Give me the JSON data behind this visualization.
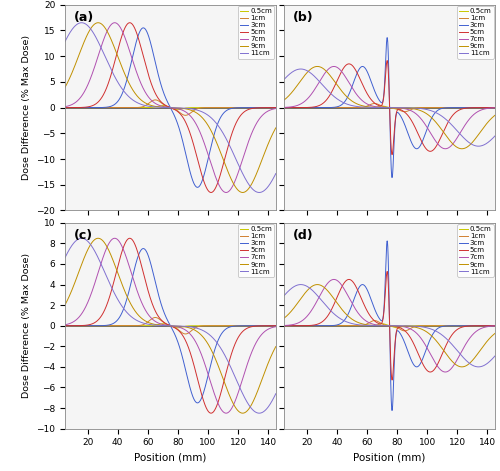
{
  "labels": [
    "0.5cm",
    "1cm",
    "3cm",
    "5cm",
    "7cm",
    "9cm",
    "11cm"
  ],
  "colors_a": [
    "#c8c800",
    "#d08030",
    "#4060d0",
    "#d03030",
    "#b050b0",
    "#c09000",
    "#8070d0"
  ],
  "colors_b": [
    "#c8c800",
    "#d08030",
    "#4060d0",
    "#d03030",
    "#b050b0",
    "#c09000",
    "#8070d0"
  ],
  "depths_cm": [
    0.5,
    1,
    3,
    5,
    7,
    9,
    11
  ],
  "x_min": 5,
  "x_max": 145,
  "x_ticks": [
    20,
    40,
    60,
    80,
    100,
    120,
    140
  ],
  "panel_labels": [
    "(a)",
    "(b)",
    "(c)",
    "(d)"
  ],
  "ylim_ab": [
    -20,
    20
  ],
  "ylim_cd": [
    -10,
    10
  ],
  "yticks_ab": [
    -20,
    -15,
    -10,
    -5,
    0,
    5,
    10,
    15,
    20
  ],
  "yticks_cd": [
    -10,
    -8,
    -6,
    -4,
    -2,
    0,
    2,
    4,
    6,
    8,
    10
  ],
  "ylabel": "Dose Difference (% Max Dose)",
  "xlabel": "Position (mm)",
  "interface_x": 75.0,
  "panel_a": {
    "amplitudes": [
      0.4,
      1.5,
      15.5,
      16.5,
      16.5,
      16.5,
      16.5
    ],
    "sigmas": [
      3.0,
      4.0,
      7.5,
      9.0,
      11.0,
      13.0,
      15.5
    ],
    "centers": [
      70.0,
      65.0,
      57.0,
      48.0,
      38.0,
      27.0,
      16.0
    ]
  },
  "panel_b": {
    "amplitudes": [
      0.3,
      0.8,
      8.0,
      8.5,
      8.0,
      8.0,
      7.5
    ],
    "sigmas": [
      2.5,
      3.5,
      6.0,
      8.0,
      10.0,
      12.0,
      14.0
    ],
    "centers": [
      70.0,
      65.0,
      57.0,
      48.0,
      38.0,
      27.0,
      16.0
    ],
    "spike_amps": [
      0.0,
      0.0,
      14.0,
      13.0,
      0.0,
      0.0,
      0.0
    ],
    "spike_sigmas": [
      0.0,
      0.0,
      1.2,
      1.5,
      0.0,
      0.0,
      0.0
    ],
    "spike_offsets": [
      0.0,
      0.0,
      -1.5,
      -1.0,
      0.0,
      0.0,
      0.0
    ]
  },
  "panel_c": {
    "amplitudes": [
      0.2,
      0.8,
      7.5,
      8.5,
      8.5,
      8.5,
      8.5
    ],
    "sigmas": [
      3.0,
      4.0,
      7.5,
      9.0,
      11.0,
      13.0,
      15.5
    ],
    "centers": [
      70.0,
      65.0,
      57.0,
      48.0,
      38.0,
      27.0,
      16.0
    ]
  },
  "panel_d": {
    "amplitudes": [
      0.2,
      0.5,
      4.0,
      4.5,
      4.5,
      4.0,
      4.0
    ],
    "sigmas": [
      2.5,
      3.5,
      6.0,
      8.0,
      10.0,
      12.0,
      14.0
    ],
    "centers": [
      70.0,
      65.0,
      57.0,
      48.0,
      38.0,
      27.0,
      16.0
    ],
    "spike_amps": [
      0.0,
      0.0,
      8.5,
      7.5,
      0.0,
      0.0,
      0.0
    ],
    "spike_sigmas": [
      0.0,
      0.0,
      1.2,
      1.5,
      0.0,
      0.0,
      0.0
    ],
    "spike_offsets": [
      0.0,
      0.0,
      -1.5,
      -1.0,
      0.0,
      0.0,
      0.0
    ]
  }
}
